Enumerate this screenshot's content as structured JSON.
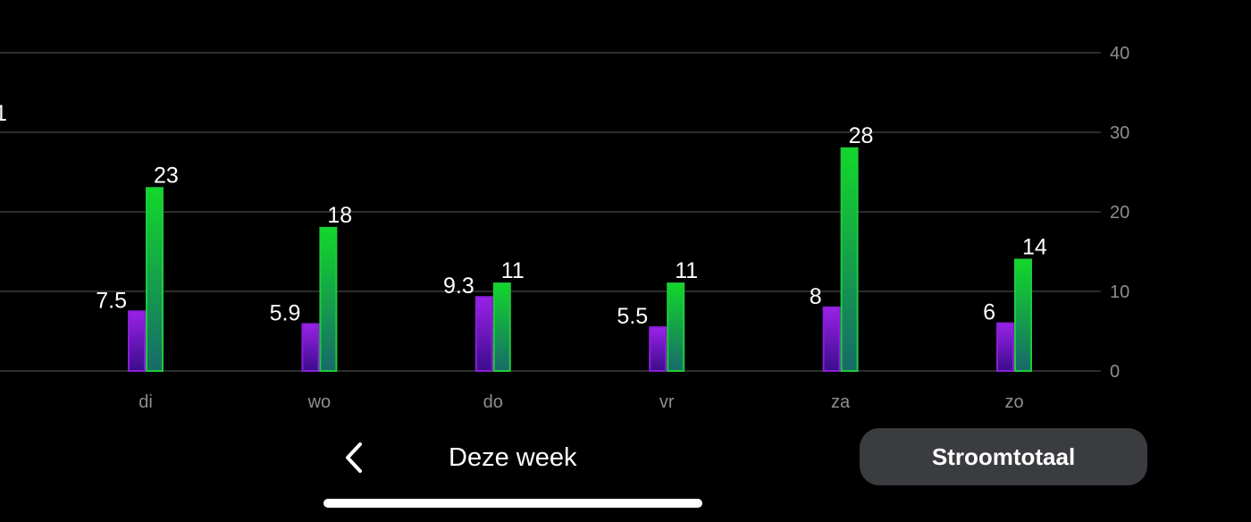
{
  "chart_data": {
    "type": "bar",
    "title": "",
    "xlabel": "",
    "ylabel": "",
    "ylim": [
      0,
      40
    ],
    "yticks": [
      "0",
      "10",
      "20",
      "30",
      "40"
    ],
    "yticks_values": [
      0,
      10,
      20,
      30,
      40
    ],
    "categories": [
      "di",
      "wo",
      "do",
      "vr",
      "za",
      "zo"
    ],
    "series": [
      {
        "name": "purple",
        "color": "#8a1ed6",
        "values": [
          7.5,
          5.9,
          9.3,
          5.5,
          8,
          6
        ],
        "labels": [
          "7.5",
          "5.9",
          "9.3",
          "5.5",
          "8",
          "6"
        ]
      },
      {
        "name": "green",
        "color": "#1ecb3a",
        "values": [
          23,
          18,
          11,
          11,
          28,
          14
        ],
        "labels": [
          "23",
          "18",
          "11",
          "11",
          "28",
          "14"
        ]
      }
    ],
    "clipped_left_label": "1",
    "grid": true
  },
  "nav": {
    "back_icon": "chevron-left-icon",
    "period_label": "Deze week",
    "total_button_label": "Stroomtotaal"
  },
  "colors": {
    "background": "#000000",
    "gridline": "#3a3a3a",
    "tick_text": "#8e8e8e",
    "purple_top": "#9b22e8",
    "purple_bottom": "#3a0c8c",
    "green_top": "#12d82a",
    "green_bottom": "#176a6a",
    "button_bg": "#3a3c3f"
  }
}
